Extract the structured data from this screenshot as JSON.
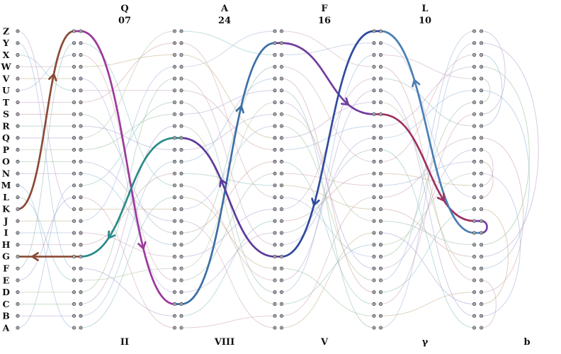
{
  "diagram": {
    "type": "enigma-m4-signal-path",
    "alphabet_top_to_bottom": "ZYXWVUTSRQPONMLKJIHGFEDCBA",
    "keyboard": {
      "input_key": "K",
      "output_lamp": "G"
    },
    "plugboard": {
      "mapping": "MBCDLYGHIJZEANOPQRSTXVWUFK"
    },
    "rotors": [
      {
        "name": "II",
        "position": "Q",
        "ring": "07",
        "mapping": "LORVFBQNGWKATHJSZPIYUDXEMC"
      },
      {
        "name": "VIII",
        "position": "A",
        "ring": "24",
        "mapping": "BJYINTKWOARFEMVSGCUDPHZQLX"
      },
      {
        "name": "V",
        "position": "F",
        "ring": "16",
        "mapping": "ILHXUBZQPNVGKMCRTEJFADOYSW"
      },
      {
        "name": "γ",
        "position": "L",
        "ring": "10",
        "mapping": "YDSKZPTNCHGQOMXAUWJFBREVLI"
      }
    ],
    "reflector": {
      "name": "b",
      "mapping": "ENKQAUYWJICOPBLMDXZVFTHRGS"
    },
    "signal_path": [
      {
        "region": "plugboard",
        "from": "K",
        "to": "Z",
        "color": "#8a4b35",
        "arrow_t": 0.68
      },
      {
        "region": "rotor-0",
        "from": "Z",
        "to": "C",
        "color": "#9c3a9c",
        "arrow_t": 0.71
      },
      {
        "region": "rotor-1",
        "from": "C",
        "to": "Y",
        "color": "#3d6fa6",
        "arrow_t": 0.68
      },
      {
        "region": "rotor-2",
        "from": "Y",
        "to": "S",
        "color": "#6f3e9e",
        "arrow_t": 0.77
      },
      {
        "region": "rotor-3",
        "from": "S",
        "to": "J",
        "color": "#9e3060",
        "arrow_t": 0.72
      },
      {
        "region": "reflector",
        "from": "J",
        "to": "I",
        "color": "#7a3fa8"
      },
      {
        "region": "rotor-3",
        "from": "I",
        "to": "Z",
        "color": "#4b7fb4",
        "arrow_t": 0.68,
        "ret": true
      },
      {
        "region": "rotor-2",
        "from": "Z",
        "to": "G",
        "color": "#2f4a9e",
        "arrow_t": 0.69,
        "ret": true
      },
      {
        "region": "rotor-1",
        "from": "G",
        "to": "Q",
        "color": "#5b3a9b",
        "arrow_t": 0.6,
        "ret": true
      },
      {
        "region": "rotor-0",
        "from": "Q",
        "to": "G",
        "color": "#2b8a8a",
        "arrow_t": 0.75,
        "ret": true
      },
      {
        "region": "plugboard",
        "from": "G",
        "to": "G",
        "color": "#8a4b35",
        "arrow_t": 0.79,
        "ret": true
      }
    ],
    "wire_palette": [
      "#8fb4d6",
      "#c9a0bd",
      "#93bd93",
      "#c2ab80",
      "#a79ad2",
      "#84bcbc",
      "#c79a90",
      "#b89ccc",
      "#9db1d9",
      "#abc39a",
      "#cf9fae",
      "#8fb3ab"
    ],
    "node": {
      "fill": "#dcdce2",
      "stroke": "#3d3d46"
    },
    "label_color": "#111111"
  }
}
